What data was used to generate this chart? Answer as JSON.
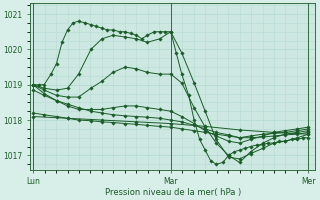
{
  "xlabel": "Pression niveau de la mer( hPa )",
  "bg_color": "#d8eee8",
  "plot_bg_color": "#cce8e0",
  "grid_color": "#b8ddd5",
  "line_color": "#1a5c28",
  "ylim": [
    1016.6,
    1021.3
  ],
  "yticks": [
    1017,
    1018,
    1019,
    1020,
    1021
  ],
  "xtick_labels": [
    "Lun",
    "Mar",
    "Mer"
  ],
  "xtick_positions": [
    0.0,
    1.0,
    2.0
  ],
  "series": [
    {
      "x": [
        0.0,
        0.04,
        0.08,
        0.13,
        0.17,
        0.21,
        0.25,
        0.29,
        0.33,
        0.38,
        0.42,
        0.46,
        0.5,
        0.54,
        0.58,
        0.63,
        0.67,
        0.71,
        0.75,
        0.79,
        0.83,
        0.88,
        0.92,
        0.96,
        1.0,
        1.04,
        1.08,
        1.13,
        1.17,
        1.21,
        1.25,
        1.29,
        1.33,
        1.38,
        1.42,
        1.46,
        1.5,
        1.54,
        1.58,
        1.63,
        1.67,
        1.71,
        1.75,
        1.79,
        1.83,
        1.88,
        1.92,
        1.96,
        2.0
      ],
      "y": [
        1019.0,
        1019.0,
        1019.0,
        1019.3,
        1019.6,
        1020.2,
        1020.55,
        1020.75,
        1020.8,
        1020.75,
        1020.7,
        1020.65,
        1020.6,
        1020.55,
        1020.55,
        1020.5,
        1020.5,
        1020.45,
        1020.4,
        1020.3,
        1020.4,
        1020.5,
        1020.5,
        1020.5,
        1020.5,
        1019.9,
        1019.3,
        1018.7,
        1018.0,
        1017.45,
        1017.15,
        1016.85,
        1016.75,
        1016.8,
        1017.0,
        1017.1,
        1017.15,
        1017.2,
        1017.25,
        1017.3,
        1017.3,
        1017.35,
        1017.35,
        1017.4,
        1017.4,
        1017.45,
        1017.45,
        1017.5,
        1017.5
      ]
    },
    {
      "x": [
        0.0,
        0.08,
        0.17,
        0.25,
        0.33,
        0.42,
        0.5,
        0.58,
        0.67,
        0.75,
        0.83,
        0.92,
        1.0,
        1.08,
        1.17,
        1.25,
        1.33,
        1.42,
        1.5,
        1.58,
        1.67,
        1.75,
        1.83,
        1.92,
        2.0
      ],
      "y": [
        1019.0,
        1018.9,
        1018.85,
        1018.9,
        1019.3,
        1020.0,
        1020.3,
        1020.4,
        1020.35,
        1020.3,
        1020.2,
        1020.3,
        1020.5,
        1019.9,
        1019.05,
        1018.25,
        1017.45,
        1016.95,
        1016.9,
        1017.05,
        1017.2,
        1017.35,
        1017.4,
        1017.5,
        1017.6
      ]
    },
    {
      "x": [
        0.0,
        0.08,
        0.17,
        0.25,
        0.33,
        0.42,
        0.5,
        0.58,
        0.67,
        0.75,
        0.83,
        0.92,
        1.0,
        1.08,
        1.17,
        1.25,
        1.33,
        1.42,
        1.5,
        1.58,
        1.67,
        1.75,
        1.83,
        1.92,
        2.0
      ],
      "y": [
        1019.0,
        1018.85,
        1018.7,
        1018.65,
        1018.65,
        1018.9,
        1019.1,
        1019.35,
        1019.5,
        1019.45,
        1019.35,
        1019.3,
        1019.3,
        1019.05,
        1018.35,
        1017.8,
        1017.35,
        1017.0,
        1016.8,
        1017.1,
        1017.35,
        1017.5,
        1017.6,
        1017.65,
        1017.7
      ]
    },
    {
      "x": [
        0.0,
        0.08,
        0.17,
        0.25,
        0.33,
        0.42,
        0.5,
        0.58,
        0.67,
        0.75,
        0.83,
        0.92,
        1.0,
        1.08,
        1.17,
        1.25,
        1.33,
        1.42,
        1.5,
        1.58,
        1.67,
        1.75,
        1.83,
        1.92,
        2.0
      ],
      "y": [
        1019.0,
        1018.75,
        1018.55,
        1018.4,
        1018.3,
        1018.3,
        1018.3,
        1018.35,
        1018.4,
        1018.4,
        1018.35,
        1018.3,
        1018.25,
        1018.1,
        1017.9,
        1017.7,
        1017.55,
        1017.4,
        1017.35,
        1017.45,
        1017.55,
        1017.65,
        1017.7,
        1017.75,
        1017.8
      ]
    },
    {
      "x": [
        0.0,
        0.08,
        0.17,
        0.25,
        0.33,
        0.42,
        0.5,
        0.58,
        0.67,
        0.75,
        0.83,
        0.92,
        1.0,
        1.08,
        1.17,
        1.25,
        1.33,
        1.42,
        1.5,
        1.58,
        1.67,
        1.75,
        1.83,
        1.92,
        2.0
      ],
      "y": [
        1018.85,
        1018.7,
        1018.55,
        1018.45,
        1018.35,
        1018.25,
        1018.2,
        1018.15,
        1018.12,
        1018.1,
        1018.08,
        1018.05,
        1018.0,
        1017.95,
        1017.85,
        1017.75,
        1017.65,
        1017.58,
        1017.5,
        1017.55,
        1017.6,
        1017.62,
        1017.65,
        1017.7,
        1017.75
      ]
    },
    {
      "x": [
        0.0,
        0.08,
        0.17,
        0.25,
        0.33,
        0.42,
        0.5,
        0.58,
        0.67,
        0.75,
        0.83,
        0.92,
        1.0,
        1.08,
        1.17,
        1.25,
        1.33,
        1.42,
        1.5,
        1.58,
        1.67,
        1.75,
        1.83,
        1.92,
        2.0
      ],
      "y": [
        1018.2,
        1018.15,
        1018.1,
        1018.05,
        1018.0,
        1017.98,
        1017.95,
        1017.93,
        1017.9,
        1017.88,
        1017.85,
        1017.82,
        1017.8,
        1017.75,
        1017.7,
        1017.65,
        1017.6,
        1017.55,
        1017.5,
        1017.5,
        1017.52,
        1017.55,
        1017.58,
        1017.6,
        1017.65
      ]
    },
    {
      "x": [
        0.0,
        0.25,
        0.5,
        0.75,
        1.0,
        1.25,
        1.5,
        1.75,
        2.0
      ],
      "y": [
        1018.1,
        1018.05,
        1018.0,
        1017.95,
        1017.9,
        1017.82,
        1017.72,
        1017.65,
        1017.6
      ]
    }
  ]
}
